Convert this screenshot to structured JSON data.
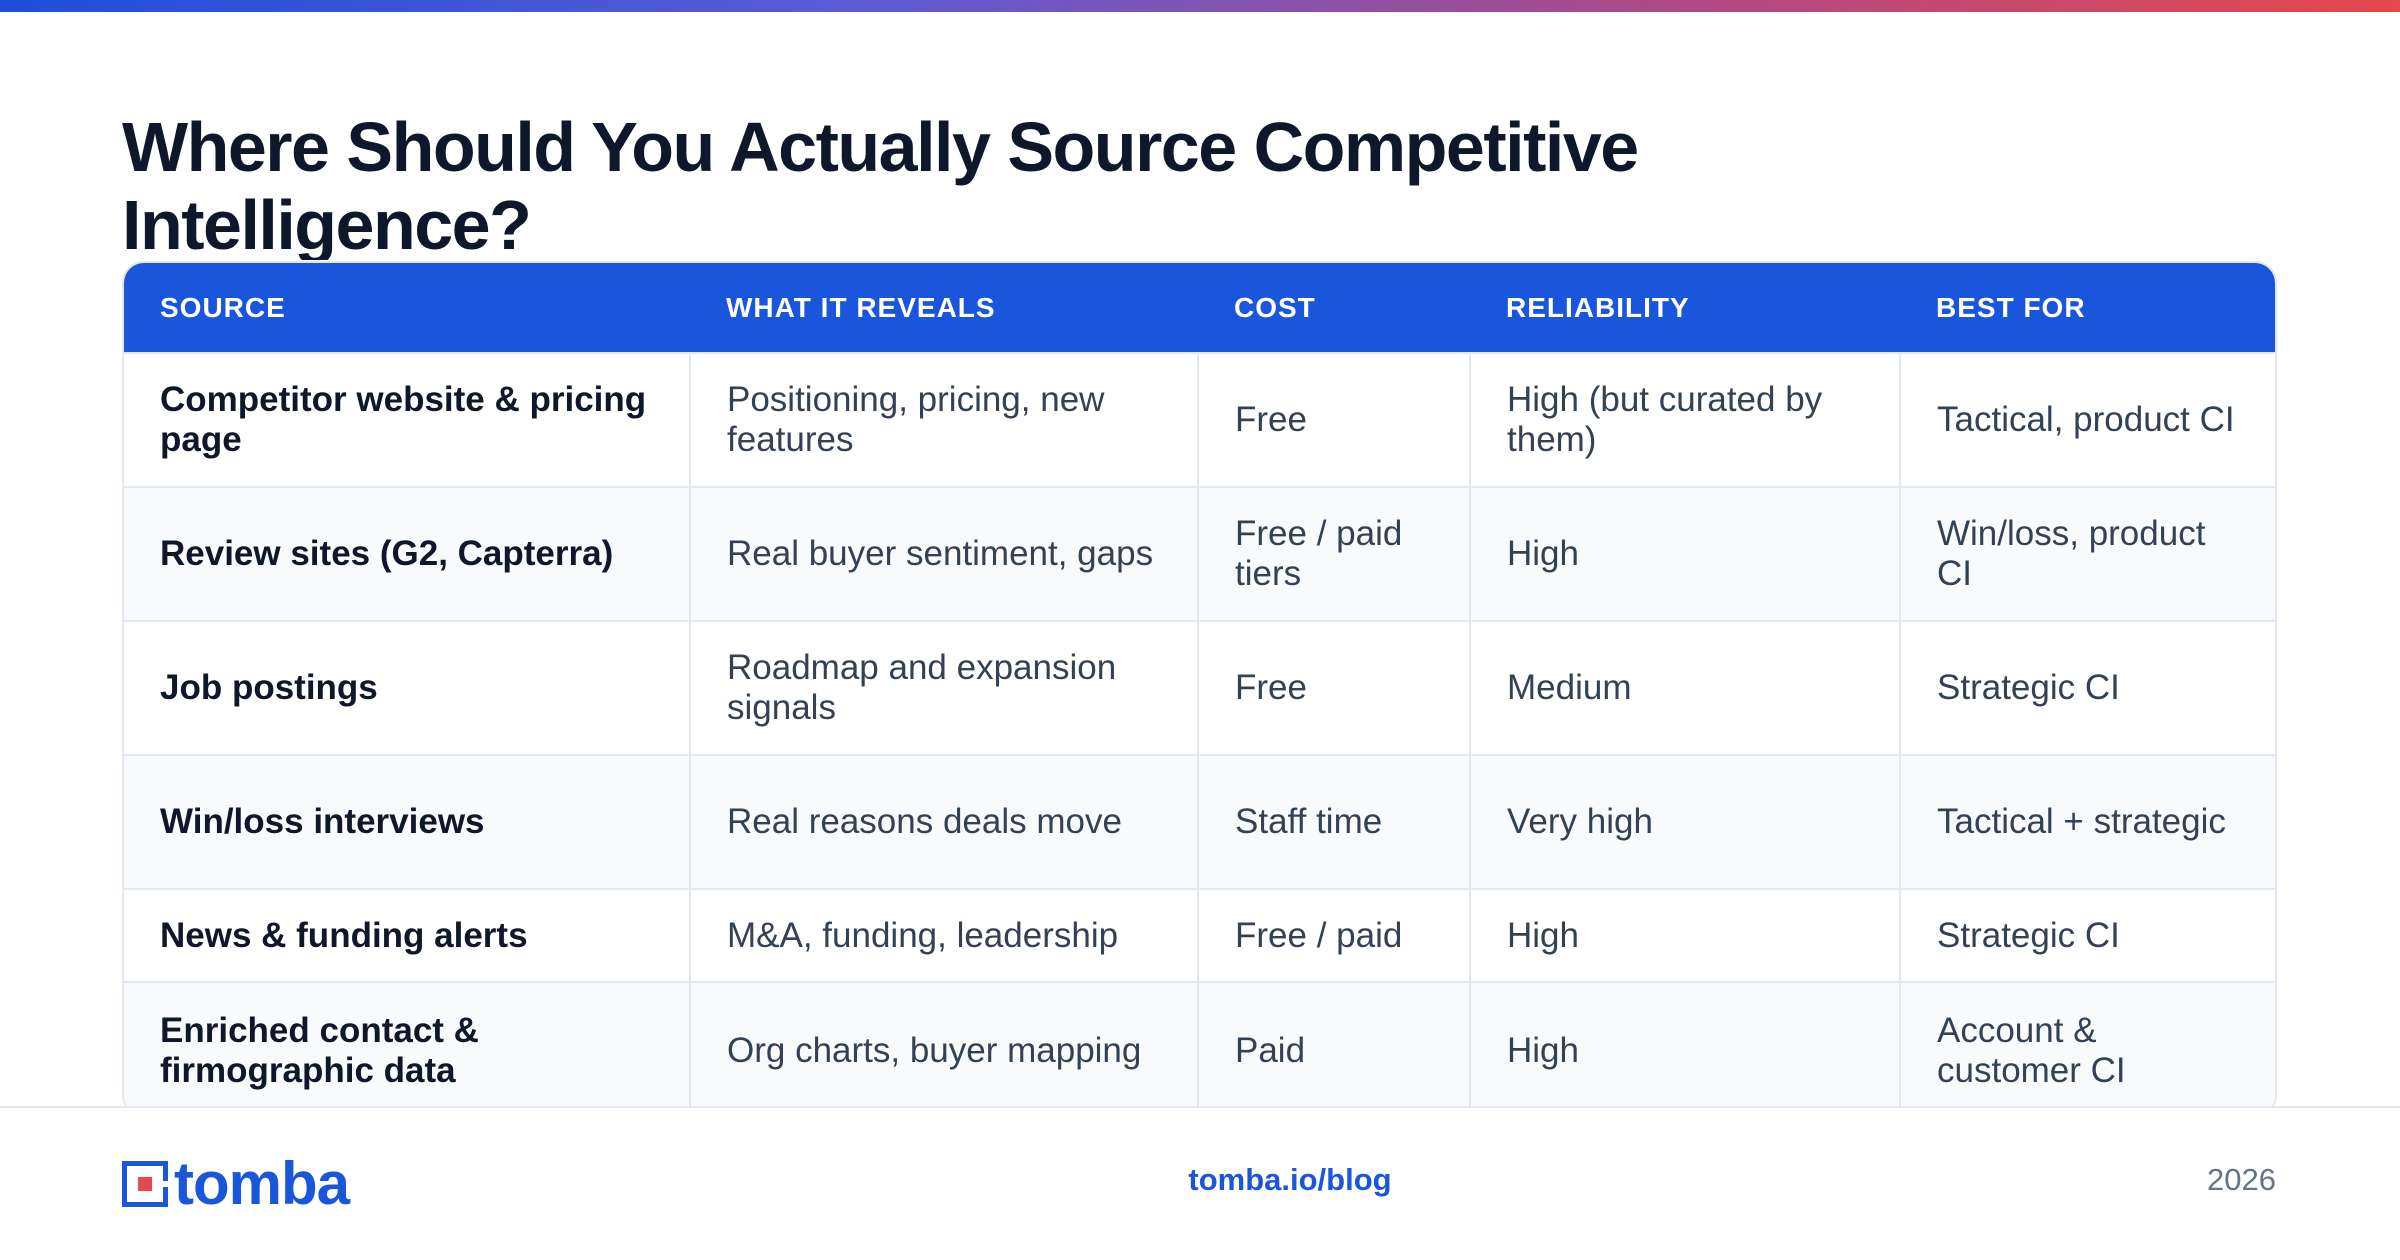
{
  "title": "Where Should You Actually Source Competitive Intelligence?",
  "colors": {
    "accent": "#1a56db",
    "header_text": "#ffffff",
    "row_alt": "#f8fafc",
    "border": "#e2e8f0"
  },
  "table": {
    "headers": [
      "SOURCE",
      "WHAT IT REVEALS",
      "COST",
      "RELIABILITY",
      "BEST FOR"
    ],
    "rows": [
      [
        "Competitor website & pricing page",
        "Positioning, pricing, new features",
        "Free",
        "High (but curated by them)",
        "Tactical, product CI"
      ],
      [
        "Review sites (G2, Capterra)",
        "Real buyer sentiment, gaps",
        "Free / paid tiers",
        "High",
        "Win/loss, product CI"
      ],
      [
        "Job postings",
        "Roadmap and expansion signals",
        "Free",
        "Medium",
        "Strategic CI"
      ],
      [
        "Win/loss interviews",
        "Real reasons deals move",
        "Staff time",
        "Very high",
        "Tactical + strategic"
      ],
      [
        "News & funding alerts",
        "M&A, funding, leadership",
        "Free / paid",
        "High",
        "Strategic CI"
      ],
      [
        "Enriched contact & firmographic data",
        "Org charts, buyer mapping",
        "Paid",
        "High",
        "Account & customer CI"
      ]
    ]
  },
  "footer": {
    "logo_text": "tomba",
    "logo_icon": "tomba-logo-icon",
    "link": "tomba.io/blog",
    "year": "2026"
  }
}
